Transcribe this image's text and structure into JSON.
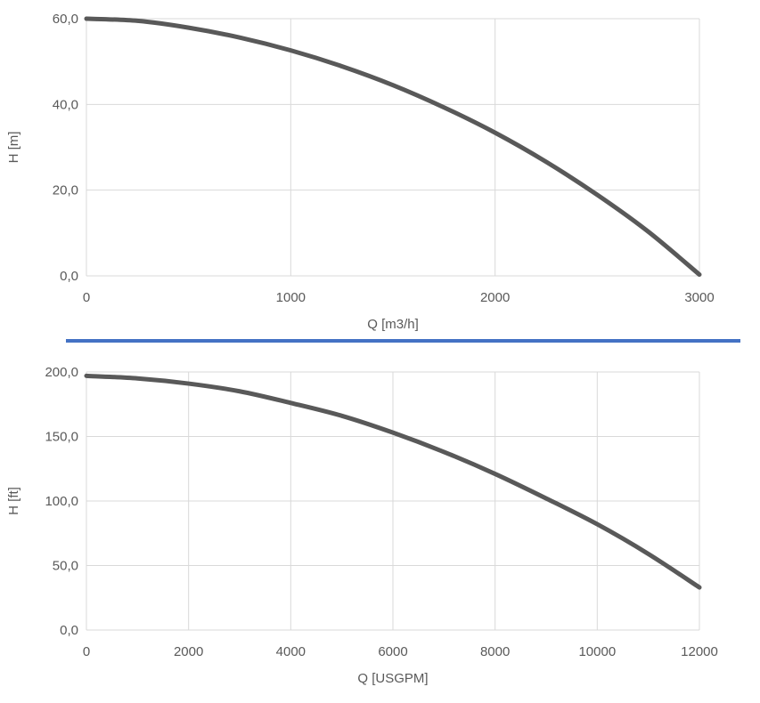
{
  "colors": {
    "curve": "#595959",
    "grid": "#d9d9d9",
    "divider": "#4472c4",
    "text": "#595959"
  },
  "chart_data": [
    {
      "type": "line",
      "title": "",
      "xlabel": "Q [m3/h]",
      "ylabel": "H [m]",
      "xlim": [
        0,
        3000
      ],
      "ylim": [
        0,
        60
      ],
      "x_ticks": [
        0,
        1000,
        2000,
        3000
      ],
      "x_tick_labels": [
        "0",
        "1000",
        "2000",
        "3000"
      ],
      "y_ticks": [
        0,
        20,
        40,
        60
      ],
      "y_tick_labels": [
        "0,0",
        "20,0",
        "40,0",
        "60,0"
      ],
      "grid": true,
      "series": [
        {
          "x": [
            0,
            250,
            500,
            750,
            1000,
            1250,
            1500,
            1750,
            2000,
            2250,
            2500,
            2750,
            3000
          ],
          "y": [
            60.0,
            59.5,
            57.9,
            55.6,
            52.6,
            48.9,
            44.5,
            39.3,
            33.4,
            26.6,
            18.9,
            10.3,
            0.3
          ]
        }
      ]
    },
    {
      "type": "line",
      "title": "",
      "xlabel": "Q [USGPM]",
      "ylabel": "H [ft]",
      "xlim": [
        0,
        12000
      ],
      "ylim": [
        0,
        200
      ],
      "x_ticks": [
        0,
        2000,
        4000,
        6000,
        8000,
        10000,
        12000
      ],
      "x_tick_labels": [
        "0",
        "2000",
        "4000",
        "6000",
        "8000",
        "10000",
        "12000"
      ],
      "y_ticks": [
        0,
        50,
        100,
        150,
        200
      ],
      "y_tick_labels": [
        "0,0",
        "50,0",
        "100,0",
        "150,0",
        "200,0"
      ],
      "grid": true,
      "series": [
        {
          "x": [
            0,
            1000,
            2000,
            3000,
            4000,
            5000,
            6000,
            7000,
            8000,
            9000,
            10000,
            11000,
            12000
          ],
          "y": [
            197,
            195,
            191,
            185,
            176,
            166,
            153,
            138,
            121,
            102,
            82,
            59,
            33
          ]
        }
      ]
    }
  ]
}
